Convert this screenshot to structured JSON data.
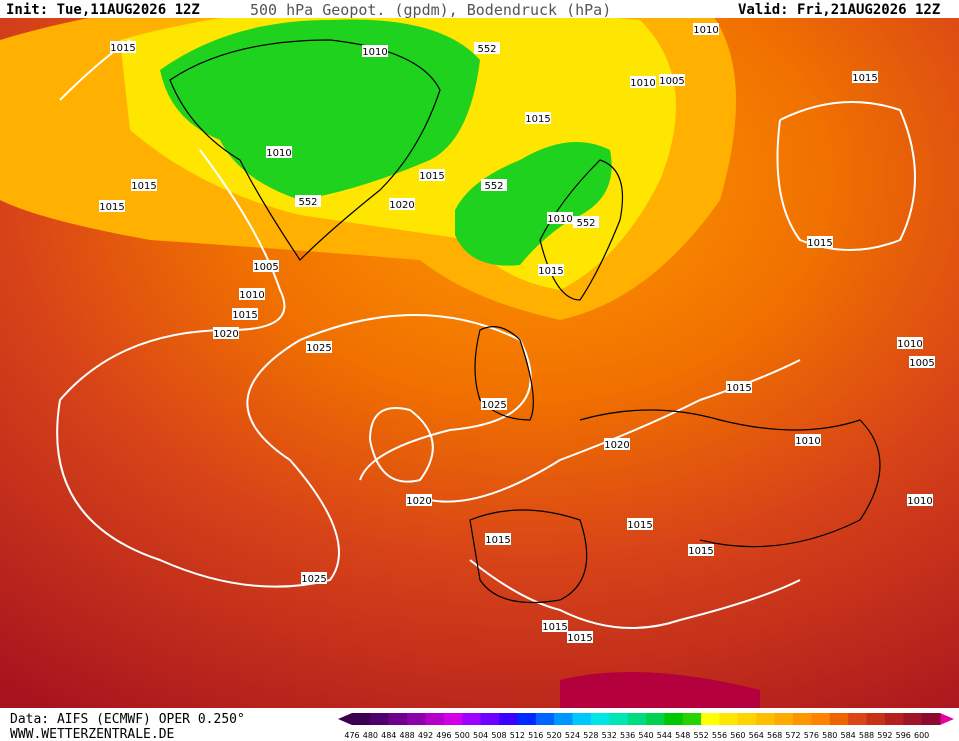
{
  "header": {
    "init": "Init: Tue,11AUG2026 12Z",
    "title": "500 hPa Geopot. (gpdm), Bodendruck (hPa)",
    "valid": "Valid: Fri,21AUG2026 12Z"
  },
  "isobar_labels": [
    "1015",
    "1010",
    "552",
    "1010",
    "1010",
    "1005",
    "1015",
    "1015",
    "1010",
    "1015",
    "1015",
    "552",
    "1015",
    "552",
    "1020",
    "1010",
    "552",
    "1015",
    "1005",
    "1015",
    "1010",
    "1015",
    "1020",
    "1025",
    "1010",
    "1005",
    "1015",
    "1025",
    "1010",
    "1020",
    "1020",
    "1010",
    "1015",
    "1015",
    "1015",
    "1025",
    "1015",
    "1015"
  ],
  "colorbar": {
    "labels": [
      "476",
      "480",
      "484",
      "488",
      "492",
      "496",
      "500",
      "504",
      "508",
      "512",
      "516",
      "520",
      "524",
      "528",
      "532",
      "536",
      "540",
      "544",
      "548",
      "552",
      "556",
      "560",
      "564",
      "568",
      "572",
      "576",
      "580",
      "584",
      "588",
      "592",
      "596",
      "600"
    ],
    "colors": [
      "#3c0050",
      "#50006e",
      "#6e008c",
      "#8c00aa",
      "#b400c8",
      "#d200e6",
      "#a000ff",
      "#6e00ff",
      "#3c00ff",
      "#0028ff",
      "#0064ff",
      "#0096ff",
      "#00c8ff",
      "#00e6e6",
      "#00e6b4",
      "#00dc82",
      "#00d250",
      "#00c800",
      "#28d200",
      "#ffff00",
      "#ffe600",
      "#ffd200",
      "#ffbe00",
      "#ffaa00",
      "#ff9600",
      "#ff8200",
      "#f06400",
      "#dc4614",
      "#c83214",
      "#b4201e",
      "#a01428",
      "#8c0a32"
    ]
  },
  "footer": {
    "source": "Data: AIFS (ECMWF) OPER 0.250°",
    "site": "WWW.WETTERZENTRALE.DE"
  }
}
